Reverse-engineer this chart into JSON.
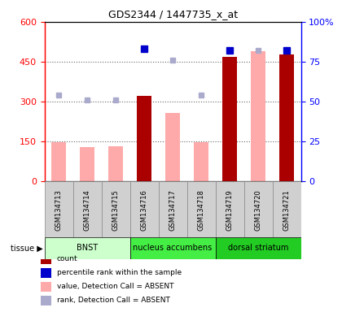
{
  "title": "GDS2344 / 1447735_x_at",
  "samples": [
    "GSM134713",
    "GSM134714",
    "GSM134715",
    "GSM134716",
    "GSM134717",
    "GSM134718",
    "GSM134719",
    "GSM134720",
    "GSM134721"
  ],
  "count_values": [
    null,
    null,
    null,
    320,
    null,
    null,
    468,
    null,
    476
  ],
  "value_absent": [
    145,
    128,
    132,
    null,
    258,
    145,
    null,
    490,
    null
  ],
  "rank_absent_pct": [
    54,
    51,
    51,
    null,
    76,
    54,
    null,
    82,
    null
  ],
  "percentile_rank_pct": [
    null,
    null,
    null,
    83,
    null,
    null,
    82,
    null,
    82
  ],
  "ylim_left": [
    0,
    600
  ],
  "ylim_right": [
    0,
    100
  ],
  "yticks_left": [
    0,
    150,
    300,
    450,
    600
  ],
  "ytick_labels_left": [
    "0",
    "150",
    "300",
    "450",
    "600"
  ],
  "yticks_right": [
    0,
    25,
    50,
    75,
    100
  ],
  "ytick_labels_right": [
    "0",
    "25",
    "50",
    "75",
    "100%"
  ],
  "tissue_groups": [
    {
      "label": "BNST",
      "start": 0,
      "end": 3,
      "color": "#ccffcc"
    },
    {
      "label": "nucleus accumbens",
      "start": 3,
      "end": 6,
      "color": "#44ee44"
    },
    {
      "label": "dorsal striatum",
      "start": 6,
      "end": 9,
      "color": "#22cc22"
    }
  ],
  "color_count": "#aa0000",
  "color_pct_rank": "#0000cc",
  "color_value_absent": "#ffaaaa",
  "color_rank_absent": "#aaaacc",
  "bar_width": 0.5,
  "figsize": [
    4.2,
    3.84
  ],
  "dpi": 100
}
